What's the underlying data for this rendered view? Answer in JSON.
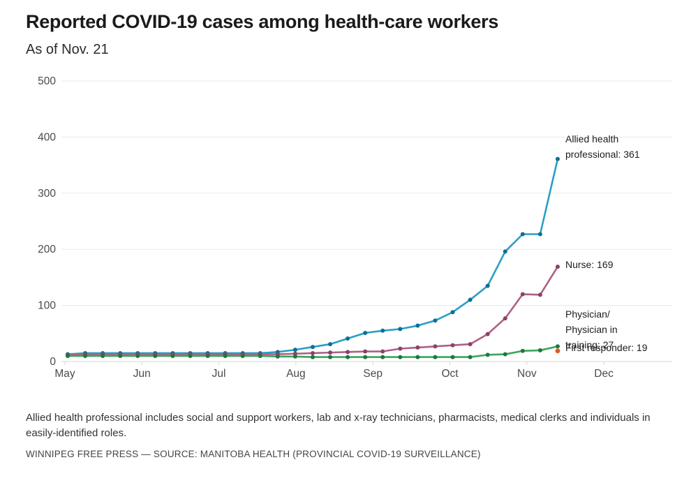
{
  "header": {
    "title": "Reported COVID-19 cases among health-care workers",
    "subtitle": "As of Nov. 21"
  },
  "chart_data": {
    "type": "line",
    "title": "Reported COVID-19 cases among health-care workers",
    "subtitle": "As of Nov. 21",
    "x_tick_labels": [
      "May",
      "Jun",
      "Jul",
      "Aug",
      "Sep",
      "Oct",
      "Nov",
      "Dec"
    ],
    "x_frequency": "weekly points from early May to Nov 21",
    "y_ticks": [
      0,
      100,
      200,
      300,
      400,
      500
    ],
    "ylim": [
      0,
      500
    ],
    "grid": "horizontal-only",
    "legend_position": "end-of-line annotations at right",
    "colors": {
      "grid_line": "#eaeaea",
      "baseline": "#d6d6d6",
      "axis_text": "#4a4a4a",
      "annotation_text": "#1c1c1c"
    },
    "series": [
      {
        "name": "Allied health professional",
        "line_color": "#2a9fc4",
        "dot_color": "#0d6f96",
        "final_value": 361,
        "annotation_lines": [
          "Allied health",
          "professional: 361"
        ],
        "values": [
          13,
          15,
          15,
          15,
          15,
          15,
          15,
          15,
          15,
          15,
          15,
          15,
          17,
          21,
          26,
          31,
          41,
          51,
          55,
          58,
          64,
          73,
          88,
          110,
          135,
          196,
          227,
          227,
          361
        ]
      },
      {
        "name": "Nurse",
        "line_color": "#ab6186",
        "dot_color": "#8f4067",
        "final_value": 169,
        "annotation_lines": [
          "Nurse: 169"
        ],
        "values": [
          12,
          13,
          13,
          13,
          13,
          13,
          13,
          13,
          13,
          13,
          13,
          13,
          13,
          14,
          15,
          16,
          17,
          18,
          18,
          23,
          25,
          27,
          29,
          31,
          49,
          77,
          120,
          119,
          169
        ]
      },
      {
        "name": "Physician/Physician in training",
        "line_color": "#3ca45c",
        "dot_color": "#1a7a3d",
        "final_value": 27,
        "annotation_lines": [
          "Physician/",
          "Physician in",
          "training: 27"
        ],
        "values": [
          10,
          10,
          10,
          10,
          10,
          10,
          10,
          10,
          10,
          10,
          10,
          10,
          9,
          9,
          8,
          8,
          8,
          8,
          8,
          8,
          8,
          8,
          8,
          8,
          12,
          13,
          19,
          20,
          27
        ]
      },
      {
        "name": "First responder",
        "line_color": "#dd5a1f",
        "dot_color": "#dd5a1f",
        "final_value": 19,
        "only_final_point_visible": true,
        "annotation_lines": [
          "First responder: 19"
        ],
        "values": [
          19
        ]
      }
    ]
  },
  "footer": {
    "note": "Allied health professional includes social and support workers, lab and x-ray technicians, pharmacists, medical clerks and individuals in easily-identified roles.",
    "source": "WINNIPEG FREE PRESS — SOURCE: MANITOBA HEALTH (PROVINCIAL COVID-19 SURVEILLANCE)"
  }
}
